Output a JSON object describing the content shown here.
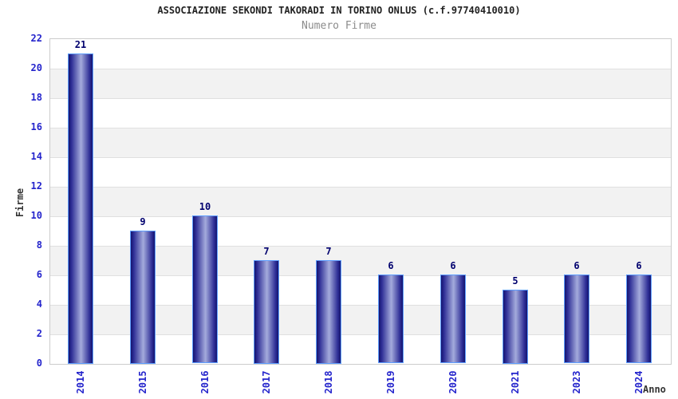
{
  "chart_data": {
    "type": "bar",
    "title": "ASSOCIAZIONE SEKONDI TAKORADI IN TORINO ONLUS (c.f.97740410010)",
    "subtitle": "Numero Firme",
    "xlabel": "Anno",
    "ylabel": "Firme",
    "categories": [
      "2014",
      "2015",
      "2016",
      "2017",
      "2018",
      "2019",
      "2020",
      "2021",
      "2023",
      "2024"
    ],
    "values": [
      21,
      9,
      10,
      7,
      7,
      6,
      6,
      5,
      6,
      6
    ],
    "ylim": [
      0,
      22
    ],
    "ytick_step": 2,
    "grid": "alternating-horizontal-bands",
    "legend": "none",
    "colors": {
      "title": "#222222",
      "subtitle": "#8c8c8c",
      "bar_gradient_dark": "#14146e",
      "bar_gradient_mid": "#2e2e96",
      "bar_gradient_light": "#a4abdc",
      "bar_border": "#5e9eff",
      "value_label": "#00006e",
      "tick_label": "#2424cc",
      "axis_title": "#333333",
      "band_gray": "#f2f2f2",
      "gridline": "#e0e0e0",
      "plot_border": "#cccccc",
      "background": "#ffffff"
    }
  }
}
